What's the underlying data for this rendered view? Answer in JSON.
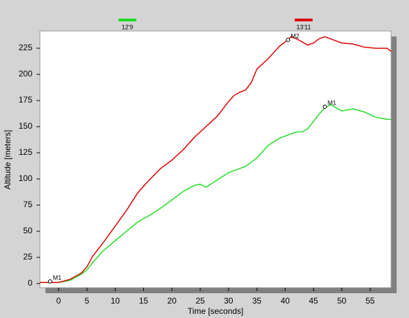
{
  "chart_data": {
    "type": "line",
    "x_label": "Time [seconds]",
    "y_label": "Altitude [meters]",
    "x": [
      -3.3,
      -1,
      0,
      2,
      4,
      5,
      6,
      8,
      10,
      12,
      14,
      16,
      18,
      20,
      22,
      24,
      25,
      26,
      28,
      30,
      31,
      32,
      33,
      34,
      35,
      37,
      39,
      40.5,
      41,
      42,
      43,
      44,
      45,
      46,
      47,
      48,
      49,
      50,
      52,
      54,
      56,
      58,
      58.7
    ],
    "series": [
      {
        "name": "12'9",
        "color": "#22dd22",
        "values": [
          1,
          1,
          1,
          3,
          9,
          13,
          20,
          32,
          41,
          50,
          59,
          65,
          72,
          80,
          88,
          94,
          95,
          92,
          99,
          106,
          108,
          110,
          112,
          116,
          120,
          132,
          139,
          142,
          143,
          145,
          145,
          148,
          155,
          162,
          168,
          171,
          168,
          165,
          167,
          164,
          159,
          157,
          157
        ]
      },
      {
        "name": "13'11",
        "color": "#dd0000",
        "values": [
          1,
          1,
          1,
          4,
          10,
          16,
          26,
          40,
          55,
          70,
          87,
          99,
          110,
          118,
          128,
          140,
          145,
          150,
          160,
          174,
          180,
          183,
          185,
          192,
          205,
          215,
          227,
          233,
          236,
          234,
          231,
          228,
          230,
          234,
          236,
          234,
          232,
          230,
          229,
          226,
          225,
          225,
          222
        ]
      }
    ],
    "annotations": [
      {
        "text": "M1",
        "x": -1.5,
        "y": 2
      },
      {
        "text": "M2",
        "x": 40.5,
        "y": 233
      },
      {
        "text": "M1",
        "x": 47,
        "y": 169
      }
    ],
    "xlim": [
      -3.3,
      58.7
    ],
    "ylim": [
      -4,
      241.5
    ],
    "xticks": [
      0,
      5,
      10,
      15,
      20,
      25,
      30,
      35,
      40,
      45,
      50,
      55
    ],
    "yticks": [
      0,
      25,
      50,
      75,
      100,
      125,
      150,
      175,
      200,
      225
    ],
    "legend": "top",
    "grid": false
  }
}
